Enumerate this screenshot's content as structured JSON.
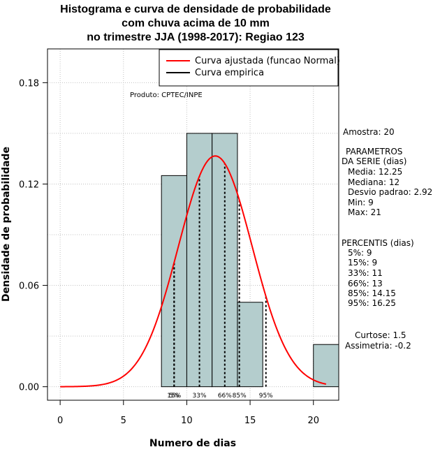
{
  "chart_data": {
    "type": "bar",
    "title_lines": [
      "Histograma e curva de densidade de probabilidade",
      "com chuva acima de 10 mm",
      "no trimestre JJA (1998-2017): Regiao 123"
    ],
    "xlabel": "Numero de dias",
    "ylabel": "Densidade de probabilidade",
    "xlim": [
      -1,
      22
    ],
    "ylim": [
      -0.008,
      0.2
    ],
    "x_ticks": [
      0,
      5,
      10,
      15,
      20
    ],
    "y_ticks": [
      0.0,
      0.06,
      0.12,
      0.18
    ],
    "y_tick_labels": [
      "0.00",
      "0.06",
      "0.12",
      "0.18"
    ],
    "bins": [
      {
        "from": 8,
        "to": 10,
        "density": 0.125
      },
      {
        "from": 10,
        "to": 12,
        "density": 0.15
      },
      {
        "from": 12,
        "to": 14,
        "density": 0.15
      },
      {
        "from": 14,
        "to": 16,
        "density": 0.05
      },
      {
        "from": 16,
        "to": 18,
        "density": 0
      },
      {
        "from": 18,
        "to": 20,
        "density": 0
      },
      {
        "from": 20,
        "to": 22,
        "density": 0.025
      }
    ],
    "normal_fit": {
      "mean": 12.25,
      "sd": 2.92,
      "x_from": 0,
      "x_to": 21
    },
    "percentile_lines": [
      {
        "label": "5%",
        "x": 9
      },
      {
        "label": "15%",
        "x": 9
      },
      {
        "label": "33%",
        "x": 11
      },
      {
        "label": "66%",
        "x": 13
      },
      {
        "label": "85%",
        "x": 14.15
      },
      {
        "label": "95%",
        "x": 16.25
      }
    ],
    "legend": [
      {
        "label": "Curva ajustada (funcao Normal)",
        "color": "#ff0000"
      },
      {
        "label": "Curva empirica",
        "color": "#000000"
      }
    ],
    "legend_position": "top-right",
    "annotation": "Produto: CPTEC/INPE",
    "colors": {
      "bar_fill": "#b4cdcd",
      "curve": "#ff0000",
      "grid": "#c0c0c0"
    }
  },
  "stats": {
    "amostra": "Amostra: 20",
    "parametros_title": "PARAMETROS",
    "parametros_subtitle": "DA SERIE (dias)",
    "media": "Media: 12.25",
    "mediana": "Mediana: 12",
    "desvio": "Desvio padrao: 2.92",
    "min": "Min: 9",
    "max": "Max: 21",
    "percentis_title": "PERCENTIS (dias)",
    "p5": "5%: 9",
    "p15": "15%: 9",
    "p33": "33%: 11",
    "p66": "66%: 13",
    "p85": "85%: 14.15",
    "p95": "95%: 16.25",
    "curtose": "Curtose: 1.5",
    "assimetria": "Assimetria: -0.2"
  }
}
